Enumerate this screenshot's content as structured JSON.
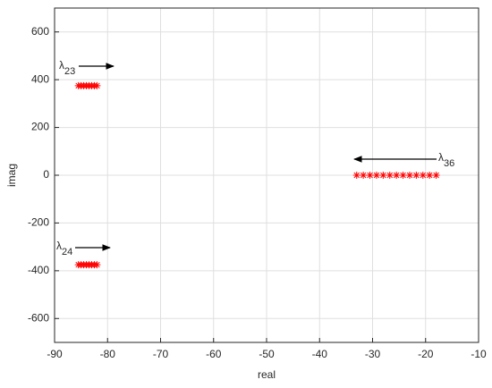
{
  "chart_data": {
    "type": "scatter",
    "xlabel": "real",
    "ylabel": "imag",
    "xlim": [
      -90,
      -10
    ],
    "xticks": [
      -90,
      -80,
      -70,
      -60,
      -50,
      -40,
      -30,
      -20,
      -10
    ],
    "ylim": [
      -700,
      700
    ],
    "yticks": [
      -600,
      -400,
      -200,
      0,
      200,
      400,
      600
    ],
    "grid": true,
    "marker": "*",
    "series": [
      {
        "color": "#ff0000",
        "x": [
          -85.5,
          -85,
          -84.5,
          -84,
          -83.5,
          -83,
          -82.5,
          -82,
          -85.5,
          -85,
          -84.5,
          -84,
          -83.5,
          -83,
          -82.5,
          -82,
          -33,
          -31.75,
          -30.5,
          -29.25,
          -28,
          -26.75,
          -25.5,
          -24.25,
          -23,
          -21.75,
          -20.5,
          -19.25,
          -18
        ],
        "values": [
          375,
          375,
          375,
          375,
          375,
          375,
          375,
          375,
          -375,
          -375,
          -375,
          -375,
          -375,
          -375,
          -375,
          -375,
          0,
          0,
          0,
          0,
          0,
          0,
          0,
          0,
          0,
          0,
          0,
          0,
          0
        ]
      }
    ],
    "annotations": [
      {
        "text": "λ",
        "subscript": "23"
      },
      {
        "text": "λ",
        "subscript": "36"
      },
      {
        "text": "λ",
        "subscript": "24"
      }
    ]
  }
}
